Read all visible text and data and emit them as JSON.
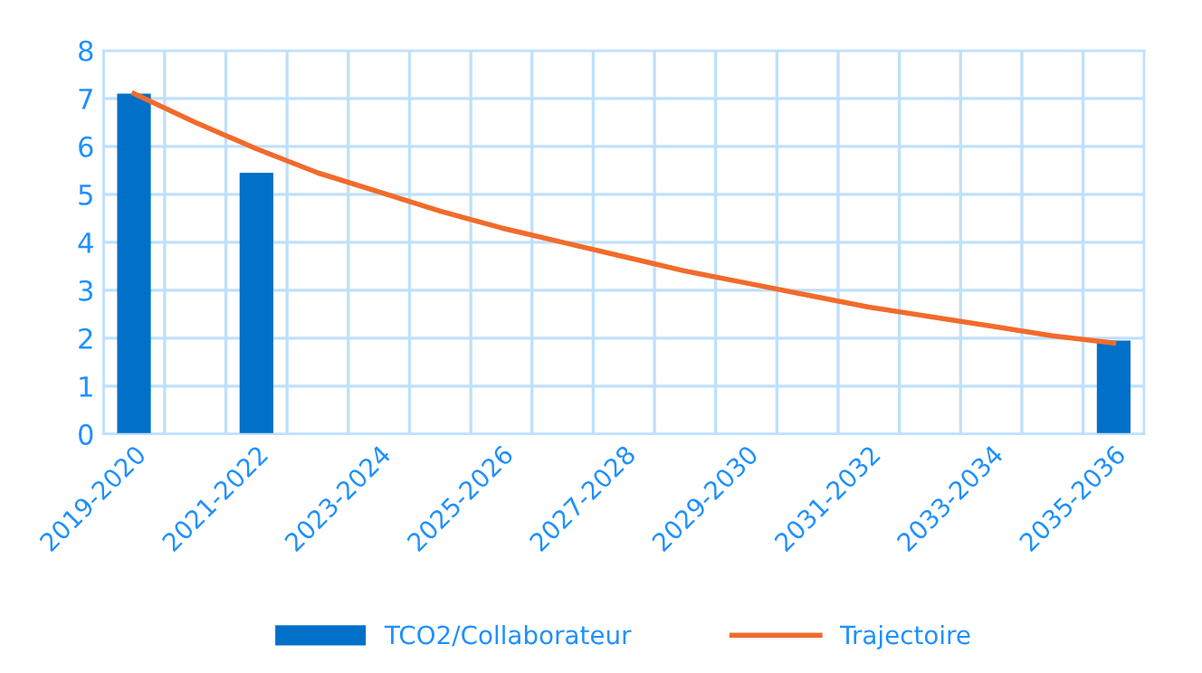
{
  "chart_data": {
    "type": "bar",
    "categories": [
      "2019-2020",
      null,
      "2021-2022",
      null,
      "2023-2024",
      null,
      "2025-2026",
      null,
      "2027-2028",
      null,
      "2029-2030",
      null,
      "2031-2032",
      null,
      "2033-2034",
      null,
      "2035-2036"
    ],
    "series": [
      {
        "name": "TCO2/Collaborateur",
        "color": "#0070c8",
        "values": [
          7.1,
          null,
          5.45,
          null,
          null,
          null,
          null,
          null,
          null,
          null,
          null,
          null,
          null,
          null,
          null,
          null,
          1.95
        ]
      },
      {
        "name": "Trajectoire",
        "type": "line",
        "color": "#f26b2b",
        "values": [
          7.1,
          6.5,
          5.95,
          5.45,
          5.05,
          4.65,
          4.3,
          4.0,
          3.7,
          3.4,
          3.15,
          2.9,
          2.65,
          2.45,
          2.25,
          2.05,
          1.9
        ]
      }
    ],
    "ylim": [
      0,
      8
    ],
    "yticks": [
      0,
      1,
      2,
      3,
      4,
      5,
      6,
      7,
      8
    ],
    "grid": true,
    "legend": "bottom",
    "marker": "none"
  }
}
